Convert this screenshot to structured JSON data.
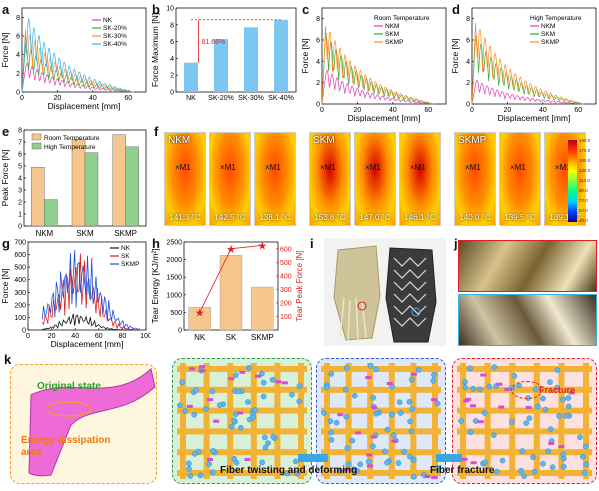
{
  "panel_labels": {
    "a": "a",
    "b": "b",
    "c": "c",
    "d": "d",
    "e": "e",
    "f": "f",
    "g": "g",
    "h": "h",
    "i": "i",
    "j": "j",
    "k": "k"
  },
  "colors": {
    "nk": "#e63db4",
    "sk20": "#3aa63a",
    "sk30": "#ff8c1a",
    "sk40": "#3ab0e6",
    "red": "#e02020",
    "black": "#111111",
    "blue": "#1f4fd6",
    "bar_peach": "#f6c68e",
    "bar_green": "#8fd08f",
    "bar_blue": "#7cc7f2"
  },
  "chart_data": [
    {
      "id": "a",
      "type": "line",
      "xlabel": "Displacement [mm]",
      "ylabel": "Force [N]",
      "xlim": [
        0,
        70
      ],
      "ylim": [
        0,
        9
      ],
      "xticks": [
        0,
        20,
        40,
        60
      ],
      "yticks": [
        0,
        2,
        4,
        6,
        8
      ],
      "series": [
        {
          "name": "NK",
          "peak": 3.2
        },
        {
          "name": "SK-20%",
          "peak": 5.2
        },
        {
          "name": "SK-30%",
          "peak": 6.9
        },
        {
          "name": "SK-40%",
          "peak": 8.6
        }
      ]
    },
    {
      "id": "b",
      "type": "bar",
      "xlabel": "",
      "ylabel": "Force Maximum [N]",
      "ylim": [
        0,
        10
      ],
      "yticks": [
        0,
        2,
        4,
        6,
        8,
        10
      ],
      "categories": [
        "NK",
        "SK-20%",
        "SK-30%",
        "SK-40%"
      ],
      "values": [
        3.5,
        6.3,
        7.7,
        8.6
      ],
      "annotation": "81.66%"
    },
    {
      "id": "c",
      "type": "line",
      "legend_title": "Room Temperature",
      "xlabel": "Displacement [mm]",
      "ylabel": "Force [N]",
      "xlim": [
        0,
        70
      ],
      "ylim": [
        0,
        9
      ],
      "xticks": [
        0,
        20,
        40,
        60
      ],
      "yticks": [
        0,
        2,
        4,
        6,
        8
      ],
      "series": [
        {
          "name": "NKM",
          "peak": 3.3
        },
        {
          "name": "SKM",
          "peak": 6.8
        },
        {
          "name": "SKMP",
          "peak": 7.6
        }
      ]
    },
    {
      "id": "d",
      "type": "line",
      "legend_title": "High Temperature",
      "xlabel": "Displacement [mm]",
      "ylabel": "Force [N]",
      "xlim": [
        0,
        70
      ],
      "ylim": [
        0,
        9
      ],
      "xticks": [
        0,
        20,
        40,
        60
      ],
      "yticks": [
        0,
        2,
        4,
        6,
        8
      ],
      "series": [
        {
          "name": "NKM",
          "peak": 2.3
        },
        {
          "name": "SKM",
          "peak": 6.5
        },
        {
          "name": "SKMP",
          "peak": 7.9
        }
      ]
    },
    {
      "id": "e",
      "type": "bar",
      "ylabel": "Peak Force [N]",
      "ylim": [
        0,
        8
      ],
      "yticks": [
        0,
        1,
        2,
        3,
        4,
        5,
        6,
        7,
        8
      ],
      "categories": [
        "NKM",
        "SKM",
        "SKMP"
      ],
      "series": [
        {
          "name": "Room Temperature",
          "values": [
            4.9,
            7.2,
            7.6
          ]
        },
        {
          "name": "High Temperature",
          "values": [
            2.2,
            6.1,
            6.6
          ]
        }
      ]
    },
    {
      "id": "g",
      "type": "line",
      "xlabel": "Displacement [mm]",
      "ylabel": "Force [N]",
      "xlim": [
        0,
        100
      ],
      "ylim": [
        0,
        700
      ],
      "xticks": [
        0,
        20,
        40,
        60,
        80,
        100
      ],
      "yticks": [
        0,
        100,
        200,
        300,
        400,
        500,
        600,
        700
      ],
      "series": [
        {
          "name": "NK",
          "peak": 130
        },
        {
          "name": "SK",
          "peak": 560
        },
        {
          "name": "SKMP",
          "peak": 620
        }
      ]
    },
    {
      "id": "h",
      "type": "bar",
      "ylabel": "Tear Energy [KJ/m²]",
      "y2label": "Tear Peak Force [N]",
      "ylim": [
        0,
        2500
      ],
      "y2lim": [
        0,
        650
      ],
      "yticks": [
        0,
        500,
        1000,
        1500,
        2000,
        2500
      ],
      "y2ticks": [
        100,
        200,
        300,
        400,
        500,
        600
      ],
      "categories": [
        "NK",
        "SK",
        "SKMP"
      ],
      "values": [
        650,
        2120,
        1220
      ],
      "line_values": [
        130,
        600,
        625
      ]
    }
  ],
  "thermal": {
    "groups": [
      {
        "name": "NKM",
        "temps": [
          "141.3 °C",
          "142.5 °C",
          "138.1 °C"
        ]
      },
      {
        "name": "SKM",
        "temps": [
          "153.8 °C",
          "147.0 °C",
          "146.1 °C"
        ]
      },
      {
        "name": "SKMP",
        "temps": [
          "140.0 °C",
          "139.5 °C",
          "139.1 °C"
        ]
      }
    ],
    "marker": "M1",
    "scale_labels": [
      "190.0",
      "170.0",
      "150.0",
      "130.0",
      "110.0",
      "90.0",
      "70.0",
      "50.0",
      "30.0"
    ]
  },
  "schematic": {
    "original": "Original state",
    "dissipation": "Energy dissipation area",
    "twisting": "Fiber twisting and deforming",
    "fracture": "Fiber fracture",
    "fracture_label": "Fracture"
  }
}
